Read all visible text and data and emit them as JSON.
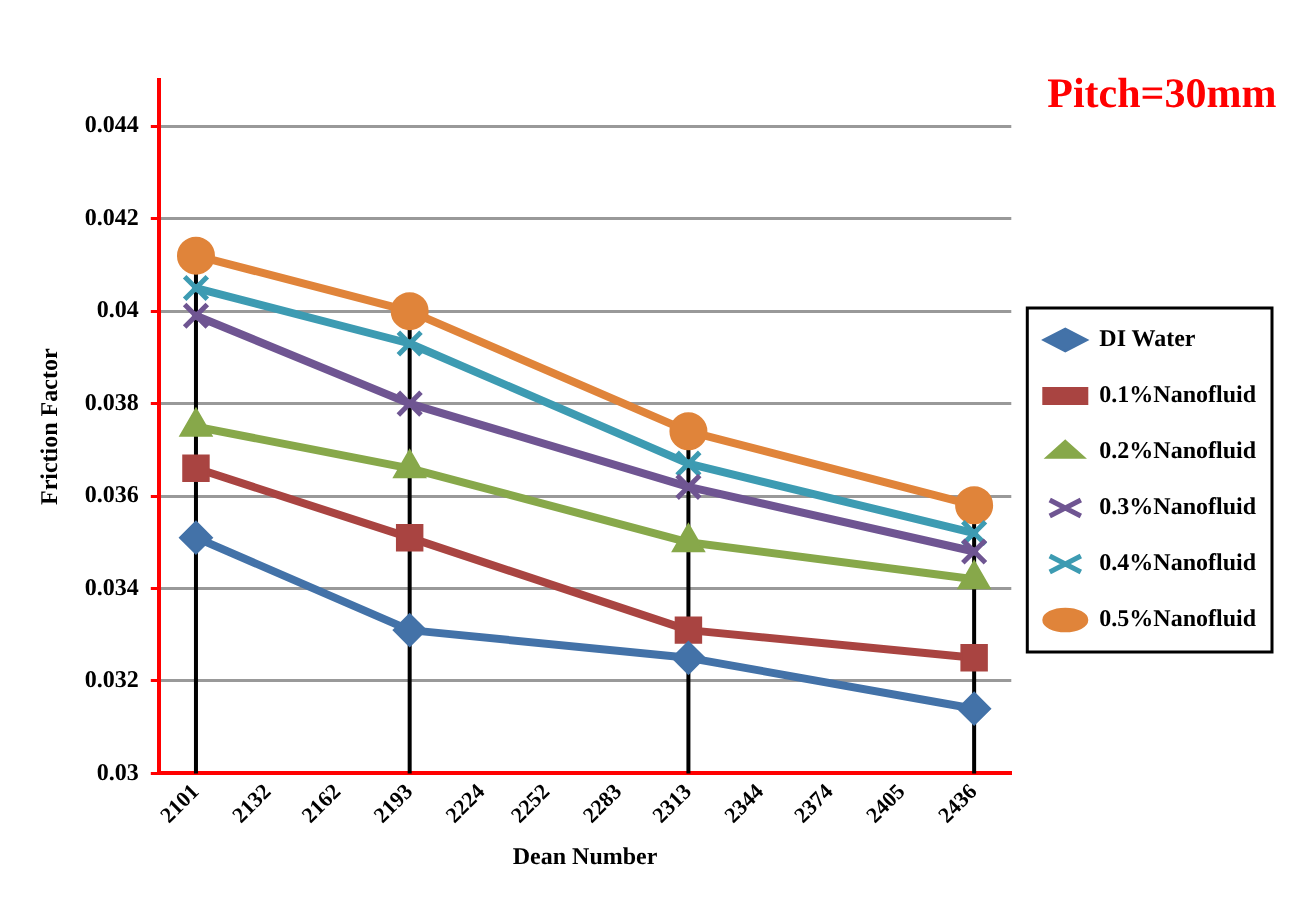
{
  "chart_data": {
    "type": "line",
    "title": "Pitch=30mm",
    "xlabel": "Dean Number",
    "ylabel": "Friction Factor",
    "x": [
      2101,
      2193,
      2313,
      2436
    ],
    "xlim": [
      2085,
      2452
    ],
    "xticks": [
      2101,
      2132,
      2162,
      2193,
      2224,
      2252,
      2283,
      2313,
      2344,
      2374,
      2405,
      2436
    ],
    "ylim": [
      0.03,
      0.045
    ],
    "yticks": [
      0.03,
      0.032,
      0.034,
      0.036,
      0.038,
      0.04,
      0.042,
      0.044
    ],
    "grid": "y",
    "legend": "right",
    "series": [
      {
        "name": "DI Water",
        "color": "#4372a8",
        "marker": "diamond",
        "values": [
          0.0351,
          0.0331,
          0.0325,
          0.0314
        ]
      },
      {
        "name": "0.1%Nanofluid",
        "color": "#a94441",
        "marker": "square",
        "values": [
          0.0366,
          0.0351,
          0.0331,
          0.0325
        ]
      },
      {
        "name": "0.2%Nanofluid",
        "color": "#87a84a",
        "marker": "triangle",
        "values": [
          0.0375,
          0.0366,
          0.035,
          0.0342
        ]
      },
      {
        "name": "0.3%Nanofluid",
        "color": "#6f5592",
        "marker": "cross",
        "values": [
          0.0399,
          0.038,
          0.0362,
          0.0348
        ]
      },
      {
        "name": "0.4%Nanofluid",
        "color": "#3d9bb2",
        "marker": "cross",
        "values": [
          0.0405,
          0.0393,
          0.0367,
          0.0352
        ]
      },
      {
        "name": "0.5%Nanofluid",
        "color": "#e0843a",
        "marker": "circle",
        "values": [
          0.0412,
          0.04,
          0.0374,
          0.0358
        ],
        "errors": [
          [
            0.03,
            0.0412
          ],
          [
            0.03,
            0.04
          ],
          [
            0.03,
            0.0374
          ],
          [
            0.03,
            0.0358
          ]
        ]
      }
    ]
  }
}
